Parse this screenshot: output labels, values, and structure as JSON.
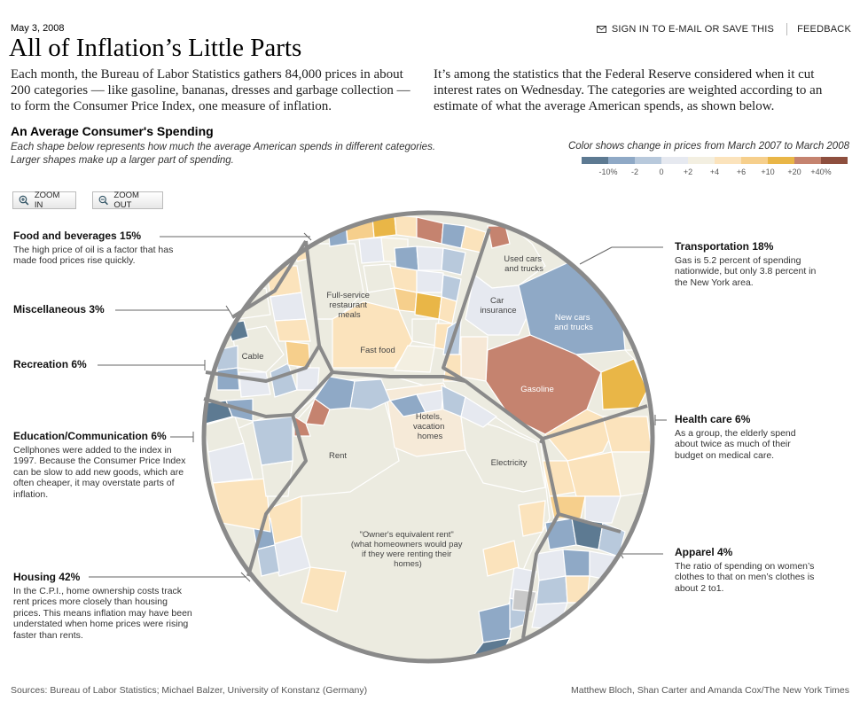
{
  "header": {
    "date": "May 3, 2008",
    "title": "All of Inflation’s Little Parts",
    "email_label": "SIGN IN TO E-MAIL OR SAVE THIS",
    "feedback_label": "FEEDBACK",
    "intro_left": "Each month, the Bureau of Labor Statistics gathers 84,000 prices in about 200 categories — like gasoline, bananas, dresses and garbage collection — to form the Consumer Price Index, one measure of inflation.",
    "intro_right": "It’s among the statistics that the Federal Reserve considered when it cut interest rates on Wednesday. The categories are weighted according to an estimate of what the average American spends, as shown below."
  },
  "section": {
    "title": "An Average Consumer's Spending",
    "line1": "Each shape below represents how much the average American spends in different categories.",
    "line2": "Larger shapes make up a larger part of spending."
  },
  "legend": {
    "caption": "Color shows change in prices from March 2007 to March 2008",
    "colors": [
      "#5d7a92",
      "#8fa9c6",
      "#b8c9dc",
      "#e6e9f0",
      "#f3efe1",
      "#fbe3bc",
      "#f6cf8c",
      "#e9b647",
      "#c5836f",
      "#8e4f3e"
    ],
    "ticks": [
      "-10%",
      "-2",
      "0",
      "+2",
      "+4",
      "+6",
      "+10",
      "+20",
      "+40%"
    ]
  },
  "controls": {
    "zoom_in": "ZOOM IN",
    "zoom_out": "ZOOM OUT"
  },
  "categories": [
    {
      "id": "food",
      "title": "Food and beverages 15%",
      "text": "The high price of oil is a factor that has made food prices rise quickly."
    },
    {
      "id": "misc",
      "title": "Miscellaneous 3%",
      "text": ""
    },
    {
      "id": "rec",
      "title": "Recreation 6%",
      "text": ""
    },
    {
      "id": "edu",
      "title": "Education/Communication 6%",
      "text": "Cellphones were added to the index in 1997. Because the Consumer Price Index can be slow to add new goods, which are often cheaper,  it may overstate parts of inflation."
    },
    {
      "id": "housing",
      "title": "Housing 42%",
      "text": "In the C.P.I., home ownership costs track rent prices more closely than housing prices. This means inflation may have been understated when home prices were rising faster than rents."
    },
    {
      "id": "trans",
      "title": "Transportation 18%",
      "text": "Gas is 5.2 percent of spending nationwide, but only 3.8 percent in the New York area."
    },
    {
      "id": "health",
      "title": "Health care 6%",
      "text": "As a group, the elderly spend about twice as much of their budget on medical care."
    },
    {
      "id": "apparel",
      "title": "Apparel 4%",
      "text": "The ratio of spending on women’s clothes to that on men’s clothes is about 2 to1."
    }
  ],
  "cell_labels": {
    "full_service": [
      "Full-service",
      "restaurant",
      "meals"
    ],
    "fast_food": "Fast food",
    "cable": "Cable",
    "used_cars": [
      "Used cars",
      "and trucks"
    ],
    "car_insurance": [
      "Car",
      "insurance"
    ],
    "new_cars": [
      "New cars",
      "and trucks"
    ],
    "gasoline": "Gasoline",
    "hotels": [
      "Hotels,",
      "vacation",
      "homes"
    ],
    "rent": "Rent",
    "electricity": "Electricity",
    "oer": [
      "\"Owner's equivalent rent\"",
      "(what homeowners would pay",
      "if they were renting their",
      "homes)"
    ]
  },
  "footer": {
    "sources": "Sources: Bureau of Labor Statistics; Michael Balzer, University of Konstanz (Germany)",
    "credit": "Matthew Bloch, Shan Carter and Amanda Cox/The New York Times"
  }
}
